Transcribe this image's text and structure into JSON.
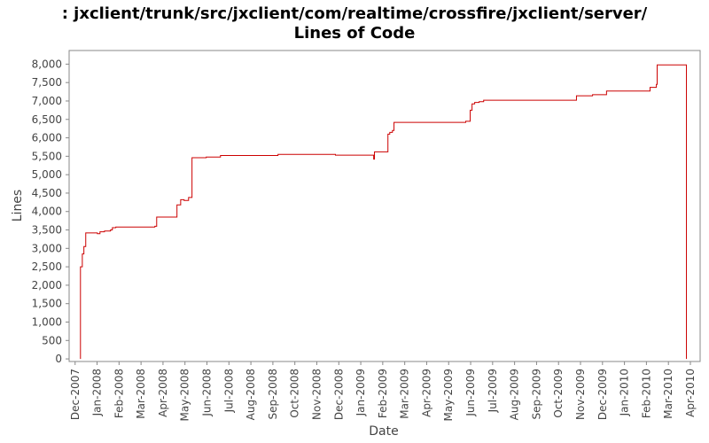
{
  "chart_data": {
    "type": "line",
    "step": "post",
    "title": [
      ": jxclient/trunk/src/jxclient/com/realtime/crossfire/jxclient/server/",
      "Lines of Code"
    ],
    "xlabel": "Date",
    "ylabel": "Lines",
    "color": "#cc0000",
    "x": [
      2007.937,
      2007.937,
      2007.944,
      2007.95,
      2007.957,
      2008.001,
      2008.011,
      2008.028,
      2008.051,
      2008.058,
      2008.071,
      2008.219,
      2008.226,
      2008.303,
      2008.317,
      2008.33,
      2008.347,
      2008.36,
      2008.414,
      2008.468,
      2008.686,
      2008.904,
      2009.049,
      2009.052,
      2009.103,
      2009.11,
      2009.12,
      2009.126,
      2009.398,
      2009.415,
      2009.422,
      2009.432,
      2009.449,
      2009.466,
      2009.818,
      2009.879,
      2009.932,
      2010.097,
      2010.121,
      2010.124,
      2010.235
    ],
    "values": [
      0,
      2500,
      2850,
      3050,
      3420,
      3400,
      3450,
      3470,
      3500,
      3560,
      3580,
      3600,
      3850,
      4180,
      4320,
      4300,
      4380,
      5460,
      5480,
      5520,
      5550,
      5530,
      5420,
      5620,
      6100,
      6150,
      6200,
      6420,
      6450,
      6750,
      6920,
      6960,
      6980,
      7020,
      7140,
      7170,
      7270,
      7370,
      7450,
      7980,
      0
    ],
    "xlim": [
      2007.894,
      2010.287
    ],
    "xticks": [
      {
        "value": 2007.9167,
        "label": "Dec-2007"
      },
      {
        "value": 2008.0,
        "label": "Jan-2008"
      },
      {
        "value": 2008.0833,
        "label": "Feb-2008"
      },
      {
        "value": 2008.1667,
        "label": "Mar-2008"
      },
      {
        "value": 2008.25,
        "label": "Apr-2008"
      },
      {
        "value": 2008.3333,
        "label": "May-2008"
      },
      {
        "value": 2008.4167,
        "label": "Jun-2008"
      },
      {
        "value": 2008.5,
        "label": "Jul-2008"
      },
      {
        "value": 2008.5833,
        "label": "Aug-2008"
      },
      {
        "value": 2008.6667,
        "label": "Sep-2008"
      },
      {
        "value": 2008.75,
        "label": "Oct-2008"
      },
      {
        "value": 2008.8333,
        "label": "Nov-2008"
      },
      {
        "value": 2008.9167,
        "label": "Dec-2008"
      },
      {
        "value": 2009.0,
        "label": "Jan-2009"
      },
      {
        "value": 2009.0833,
        "label": "Feb-2009"
      },
      {
        "value": 2009.1667,
        "label": "Mar-2009"
      },
      {
        "value": 2009.25,
        "label": "Apr-2009"
      },
      {
        "value": 2009.3333,
        "label": "May-2009"
      },
      {
        "value": 2009.4167,
        "label": "Jun-2009"
      },
      {
        "value": 2009.5,
        "label": "Jul-2009"
      },
      {
        "value": 2009.5833,
        "label": "Aug-2009"
      },
      {
        "value": 2009.6667,
        "label": "Sep-2009"
      },
      {
        "value": 2009.75,
        "label": "Oct-2009"
      },
      {
        "value": 2009.8333,
        "label": "Nov-2009"
      },
      {
        "value": 2009.9167,
        "label": "Dec-2009"
      },
      {
        "value": 2010.0,
        "label": "Jan-2010"
      },
      {
        "value": 2010.0833,
        "label": "Feb-2010"
      },
      {
        "value": 2010.1667,
        "label": "Mar-2010"
      },
      {
        "value": 2010.25,
        "label": "Apr-2010"
      }
    ],
    "ylim": [
      -70,
      8370
    ],
    "yticks": [
      0,
      500,
      {
        "value": 1000,
        "label": "1,000"
      },
      {
        "value": 1500,
        "label": "1,500"
      },
      {
        "value": 2000,
        "label": "2,000"
      },
      {
        "value": 2500,
        "label": "2,500"
      },
      {
        "value": 3000,
        "label": "3,000"
      },
      {
        "value": 3500,
        "label": "3,500"
      },
      {
        "value": 4000,
        "label": "4,000"
      },
      {
        "value": 4500,
        "label": "4,500"
      },
      {
        "value": 5000,
        "label": "5,000"
      },
      {
        "value": 5500,
        "label": "5,500"
      },
      {
        "value": 6000,
        "label": "6,000"
      },
      {
        "value": 6500,
        "label": "6,500"
      },
      {
        "value": 7000,
        "label": "7,000"
      },
      {
        "value": 7500,
        "label": "7,500"
      },
      {
        "value": 8000,
        "label": "8,000"
      }
    ],
    "grid": false
  }
}
